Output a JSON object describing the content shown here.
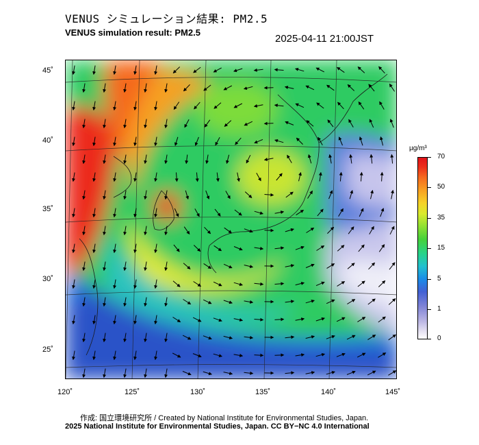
{
  "title_jp": "VENUS シミュレーション結果: PM2.5",
  "title_en": "VENUS simulation result: PM2.5",
  "timestamp": "2025-04-11 21:00JST",
  "map": {
    "lat_labels": [
      "45˚",
      "40˚",
      "35˚",
      "30˚",
      "25˚"
    ],
    "lon_labels": [
      "120˚",
      "125˚",
      "130˚",
      "135˚",
      "140˚",
      "145˚"
    ]
  },
  "colorbar": {
    "unit": "µg/m³",
    "ticks": [
      "70",
      "50",
      "35",
      "15",
      "5",
      "1",
      "0"
    ],
    "colors": [
      "#ffffff",
      "#b9b4e3",
      "#4361d4",
      "#22c0cf",
      "#46d13a",
      "#d9ea2e",
      "#f8a122",
      "#e0141a"
    ]
  },
  "credit_line_1": "作成: 国立環境研究所 / Created by National Institute for Environmental Studies, Japan.",
  "credit_line_2": "2025 National Institute for Environmental Studies, Japan. CC BY−NC 4.0 International"
}
